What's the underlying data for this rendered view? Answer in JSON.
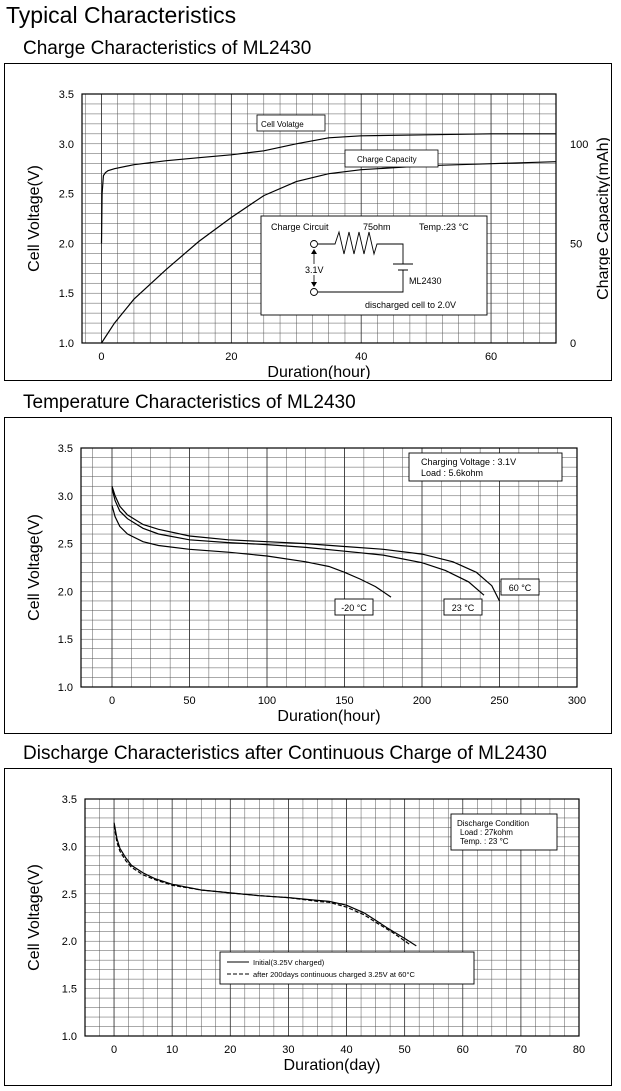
{
  "page": {
    "title": "Typical Characteristics"
  },
  "chart_data": [
    {
      "type": "line",
      "title": "Charge Characteristics of ML2430",
      "xlabel": "Duration(hour)",
      "ylabel": "Cell Voltage(V)",
      "y2label": "Charge Capacity(mAh)",
      "xlim": [
        -3,
        70
      ],
      "ylim": [
        1.0,
        3.5
      ],
      "y2lim": [
        0,
        125
      ],
      "xticks": [
        0,
        20,
        40,
        60
      ],
      "yticks": [
        1.0,
        1.5,
        2.0,
        2.5,
        3.0,
        3.5
      ],
      "y2ticks": [
        0,
        50,
        100
      ],
      "grid": true,
      "series": [
        {
          "name": "Cell Volatge",
          "axis": "left",
          "x": [
            0,
            0.1,
            0.3,
            0.6,
            1,
            2,
            5,
            10,
            15,
            20,
            25,
            30,
            35,
            40,
            50,
            60,
            70
          ],
          "y": [
            2.0,
            2.5,
            2.68,
            2.71,
            2.73,
            2.75,
            2.79,
            2.83,
            2.86,
            2.89,
            2.93,
            3.0,
            3.06,
            3.08,
            3.09,
            3.1,
            3.1
          ]
        },
        {
          "name": "Charge Capacity",
          "axis": "right",
          "x": [
            0,
            2,
            5,
            10,
            15,
            20,
            25,
            30,
            35,
            40,
            50,
            60,
            70
          ],
          "y": [
            0,
            10,
            22,
            37,
            51,
            63,
            74,
            81,
            85,
            87,
            89,
            90,
            91
          ]
        }
      ],
      "inset": {
        "title": "Charge Circuit",
        "resistor": "75ohm",
        "temp": "Temp.:23 °C",
        "voltage": "3.1V",
        "cell": "ML2430",
        "note": "discharged cell to 2.0V"
      }
    },
    {
      "type": "line",
      "title": "Temperature Characteristics of ML2430",
      "xlabel": "Duration(hour)",
      "ylabel": "Cell Voltage(V)",
      "xlim": [
        -20,
        300
      ],
      "ylim": [
        1.0,
        3.5
      ],
      "xticks": [
        0,
        50,
        100,
        150,
        200,
        250,
        300
      ],
      "yticks": [
        1.0,
        1.5,
        2.0,
        2.5,
        3.0,
        3.5
      ],
      "grid": true,
      "legend_box": [
        "Charging Voltage : 3.1V",
        "Load : 5.6kohm"
      ],
      "series": [
        {
          "name": "-20 °C",
          "x": [
            0,
            2,
            5,
            10,
            20,
            30,
            50,
            75,
            100,
            125,
            140,
            150,
            160,
            170,
            180
          ],
          "y": [
            2.9,
            2.78,
            2.68,
            2.6,
            2.52,
            2.48,
            2.44,
            2.41,
            2.37,
            2.31,
            2.26,
            2.2,
            2.13,
            2.05,
            1.94
          ]
        },
        {
          "name": "23 °C",
          "x": [
            0,
            2,
            5,
            10,
            20,
            30,
            50,
            75,
            100,
            125,
            150,
            175,
            200,
            215,
            230,
            240
          ],
          "y": [
            3.08,
            2.95,
            2.84,
            2.76,
            2.66,
            2.6,
            2.54,
            2.51,
            2.49,
            2.46,
            2.42,
            2.38,
            2.3,
            2.22,
            2.1,
            1.96
          ]
        },
        {
          "name": "60 °C",
          "x": [
            0,
            2,
            5,
            10,
            20,
            30,
            50,
            75,
            100,
            125,
            150,
            175,
            200,
            220,
            235,
            245,
            250
          ],
          "y": [
            3.1,
            3.0,
            2.89,
            2.8,
            2.7,
            2.65,
            2.58,
            2.54,
            2.52,
            2.5,
            2.47,
            2.44,
            2.39,
            2.31,
            2.2,
            2.06,
            1.9
          ]
        }
      ]
    },
    {
      "type": "line",
      "title": "Discharge Characteristics after Continuous Charge of ML2430",
      "xlabel": "Duration(day)",
      "ylabel": "Cell Voltage(V)",
      "xlim": [
        -5,
        80
      ],
      "ylim": [
        1.0,
        3.5
      ],
      "xticks": [
        0,
        10,
        20,
        30,
        40,
        50,
        60,
        70,
        80
      ],
      "yticks": [
        1.0,
        1.5,
        2.0,
        2.5,
        3.0,
        3.5
      ],
      "grid": true,
      "legend_box": [
        "Discharge Condition",
        "Load : 27kohm",
        "Temp. : 23 °C"
      ],
      "series": [
        {
          "name": "Initial(3.25V charged)",
          "dash": false,
          "x": [
            0,
            0.5,
            1,
            2,
            3,
            5,
            7,
            10,
            15,
            20,
            25,
            30,
            35,
            37,
            40,
            43,
            45,
            47,
            50,
            52
          ],
          "y": [
            3.25,
            3.08,
            2.98,
            2.88,
            2.8,
            2.72,
            2.66,
            2.6,
            2.54,
            2.51,
            2.48,
            2.46,
            2.43,
            2.42,
            2.38,
            2.3,
            2.22,
            2.14,
            2.03,
            1.95
          ]
        },
        {
          "name": "after 200days continuous charged 3.25V at 60°C",
          "dash": true,
          "x": [
            0,
            0.5,
            1,
            2,
            3,
            5,
            7,
            10,
            15,
            20,
            25,
            30,
            35,
            37,
            40,
            43,
            45,
            48,
            51
          ],
          "y": [
            3.22,
            3.04,
            2.95,
            2.85,
            2.78,
            2.7,
            2.65,
            2.59,
            2.54,
            2.51,
            2.48,
            2.46,
            2.42,
            2.41,
            2.36,
            2.28,
            2.2,
            2.09,
            1.96
          ]
        }
      ]
    }
  ]
}
